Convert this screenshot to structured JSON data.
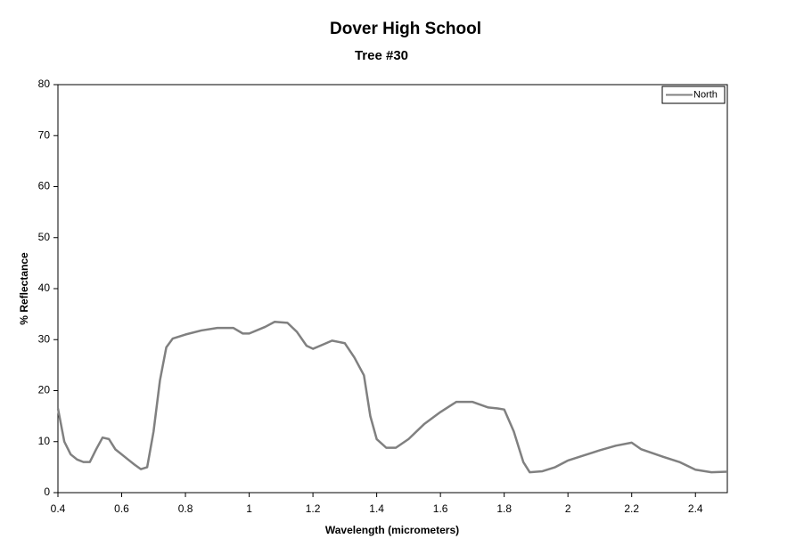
{
  "chart_data": {
    "type": "line",
    "title": "Dover High School",
    "subtitle": "Tree #30",
    "x_label": "Wavelength (micrometers)",
    "y_label": "% Reflectance",
    "x": [
      0.4,
      0.42,
      0.44,
      0.46,
      0.48,
      0.5,
      0.52,
      0.54,
      0.56,
      0.58,
      0.6,
      0.62,
      0.64,
      0.66,
      0.68,
      0.7,
      0.72,
      0.74,
      0.76,
      0.8,
      0.85,
      0.9,
      0.95,
      0.98,
      1.0,
      1.05,
      1.08,
      1.12,
      1.15,
      1.18,
      1.2,
      1.23,
      1.26,
      1.3,
      1.33,
      1.36,
      1.38,
      1.4,
      1.43,
      1.46,
      1.5,
      1.55,
      1.6,
      1.65,
      1.7,
      1.75,
      1.78,
      1.8,
      1.83,
      1.86,
      1.88,
      1.92,
      1.96,
      2.0,
      2.05,
      2.1,
      2.15,
      2.2,
      2.23,
      2.3,
      2.35,
      2.4,
      2.45,
      2.5
    ],
    "series": [
      {
        "name": "North",
        "color": "#808080",
        "values": [
          16.5,
          10,
          7.5,
          6.5,
          6,
          6,
          8.5,
          10.8,
          10.5,
          8.5,
          7.5,
          6.5,
          5.5,
          4.6,
          5,
          12,
          22,
          28.5,
          30.2,
          31,
          31.8,
          32.3,
          32.3,
          31.2,
          31.2,
          32.5,
          33.5,
          33.3,
          31.5,
          28.8,
          28.2,
          29,
          29.8,
          29.3,
          26.5,
          23,
          15,
          10.5,
          8.8,
          8.8,
          10.5,
          13.5,
          15.8,
          17.8,
          17.8,
          16.7,
          16.5,
          16.3,
          12,
          6,
          4,
          4.2,
          5,
          6.3,
          7.3,
          8.3,
          9.2,
          9.8,
          8.5,
          7,
          6,
          4.5,
          4,
          4.1
        ]
      }
    ],
    "xlim": [
      0.4,
      2.5
    ],
    "ylim": [
      0,
      80
    ],
    "xticks": [
      0.4,
      0.6,
      0.8,
      1,
      1.2,
      1.4,
      1.6,
      1.8,
      2,
      2.2,
      2.4
    ],
    "yticks": [
      0,
      10,
      20,
      30,
      40,
      50,
      60,
      70,
      80
    ],
    "legend": "top-right"
  }
}
